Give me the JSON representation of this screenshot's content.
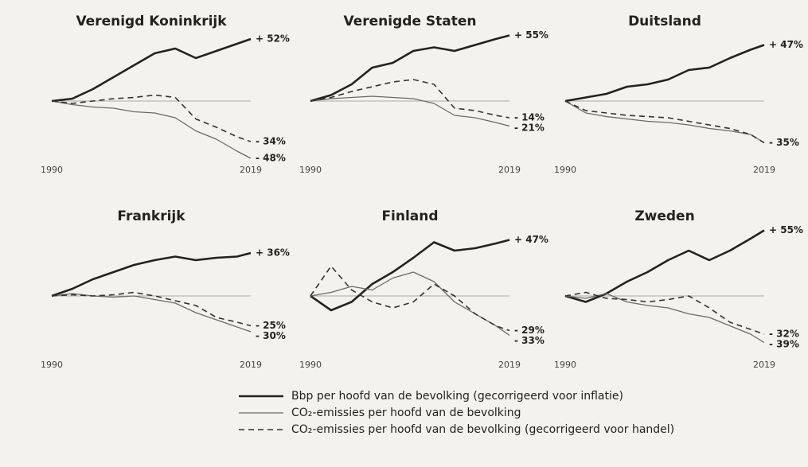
{
  "chart_data": [
    {
      "type": "line",
      "title": "Verenigd Koninkrijk",
      "x": [
        1990,
        1993,
        1996,
        1999,
        2002,
        2005,
        2008,
        2011,
        2014,
        2017,
        2019
      ],
      "xlim": [
        1990,
        2019
      ],
      "xticks": [
        1990,
        2019
      ],
      "ylim": [
        -60,
        60
      ],
      "series": [
        {
          "color": "#222222",
          "style": "solid",
          "values": [
            0,
            2,
            10,
            20,
            30,
            40,
            44,
            36,
            42,
            48,
            52
          ],
          "value_labels": [
            null,
            null,
            null,
            null,
            null,
            null,
            null,
            null,
            null,
            null,
            "+ 52%"
          ]
        },
        {
          "color": "#6a6a6a",
          "style": "solid",
          "values": [
            0,
            -3,
            -5,
            -6,
            -9,
            -10,
            -14,
            -25,
            -32,
            -42,
            -48
          ],
          "value_labels": [
            null,
            null,
            null,
            null,
            null,
            null,
            null,
            null,
            null,
            null,
            "- 48%"
          ]
        },
        {
          "color": "#333333",
          "style": "dashed",
          "values": [
            0,
            -2,
            0,
            2,
            3,
            5,
            3,
            -15,
            -22,
            -30,
            -34
          ],
          "value_labels": [
            null,
            null,
            null,
            null,
            null,
            null,
            null,
            null,
            null,
            null,
            "- 34%"
          ]
        }
      ]
    },
    {
      "type": "line",
      "title": "Verenigde Staten",
      "x": [
        1990,
        1993,
        1996,
        1999,
        2002,
        2005,
        2008,
        2011,
        2014,
        2017,
        2019
      ],
      "xlim": [
        1990,
        2019
      ],
      "xticks": [
        1990,
        2019
      ],
      "ylim": [
        -60,
        60
      ],
      "series": [
        {
          "color": "#222222",
          "style": "solid",
          "values": [
            0,
            5,
            14,
            28,
            32,
            42,
            45,
            42,
            47,
            52,
            55
          ],
          "value_labels": [
            null,
            null,
            null,
            null,
            null,
            null,
            null,
            null,
            null,
            null,
            "+ 55%"
          ]
        },
        {
          "color": "#6a6a6a",
          "style": "solid",
          "values": [
            0,
            2,
            3,
            4,
            3,
            2,
            -2,
            -12,
            -14,
            -18,
            -21
          ],
          "value_labels": [
            null,
            null,
            null,
            null,
            null,
            null,
            null,
            null,
            null,
            null,
            "- 21%"
          ]
        },
        {
          "color": "#333333",
          "style": "dashed",
          "values": [
            0,
            3,
            8,
            12,
            16,
            18,
            14,
            -6,
            -8,
            -12,
            -14
          ],
          "value_labels": [
            null,
            null,
            null,
            null,
            null,
            null,
            null,
            null,
            null,
            null,
            "- 14%"
          ]
        }
      ]
    },
    {
      "type": "line",
      "title": "Duitsland",
      "x": [
        1990,
        1993,
        1996,
        1999,
        2002,
        2005,
        2008,
        2011,
        2014,
        2017,
        2019
      ],
      "xlim": [
        1990,
        2019
      ],
      "xticks": [
        1990,
        2019
      ],
      "ylim": [
        -60,
        60
      ],
      "series": [
        {
          "color": "#222222",
          "style": "solid",
          "values": [
            0,
            3,
            6,
            12,
            14,
            18,
            26,
            28,
            36,
            43,
            47
          ],
          "value_labels": [
            null,
            null,
            null,
            null,
            null,
            null,
            null,
            null,
            null,
            null,
            "+ 47%"
          ]
        },
        {
          "color": "#6a6a6a",
          "style": "solid",
          "values": [
            0,
            -10,
            -13,
            -15,
            -17,
            -18,
            -20,
            -23,
            -25,
            -28,
            -35
          ],
          "value_labels": [
            null,
            null,
            null,
            null,
            null,
            null,
            null,
            null,
            null,
            null,
            "- 35%"
          ]
        },
        {
          "color": "#333333",
          "style": "dashed",
          "values": [
            0,
            -8,
            -10,
            -12,
            -13,
            -14,
            -17,
            -20,
            -23,
            -28,
            -35
          ]
        }
      ]
    },
    {
      "type": "line",
      "title": "Frankrijk",
      "x": [
        1990,
        1993,
        1996,
        1999,
        2002,
        2005,
        2008,
        2011,
        2014,
        2017,
        2019
      ],
      "xlim": [
        1990,
        2019
      ],
      "xticks": [
        1990,
        2019
      ],
      "ylim": [
        -60,
        60
      ],
      "series": [
        {
          "color": "#222222",
          "style": "solid",
          "values": [
            0,
            6,
            14,
            20,
            26,
            30,
            33,
            30,
            32,
            33,
            36
          ],
          "value_labels": [
            null,
            null,
            null,
            null,
            null,
            null,
            null,
            null,
            null,
            null,
            "+ 36%"
          ]
        },
        {
          "color": "#6a6a6a",
          "style": "solid",
          "values": [
            0,
            2,
            0,
            -1,
            0,
            -3,
            -6,
            -14,
            -20,
            -26,
            -30
          ],
          "value_labels": [
            null,
            null,
            null,
            null,
            null,
            null,
            null,
            null,
            null,
            null,
            "- 30%"
          ]
        },
        {
          "color": "#333333",
          "style": "dashed",
          "values": [
            0,
            1,
            0,
            1,
            3,
            0,
            -4,
            -8,
            -18,
            -22,
            -25
          ],
          "value_labels": [
            null,
            null,
            null,
            null,
            null,
            null,
            null,
            null,
            null,
            null,
            "- 25%"
          ]
        }
      ]
    },
    {
      "type": "line",
      "title": "Finland",
      "x": [
        1990,
        1993,
        1996,
        1999,
        2002,
        2005,
        2008,
        2011,
        2014,
        2017,
        2019
      ],
      "xlim": [
        1990,
        2019
      ],
      "xticks": [
        1990,
        2019
      ],
      "ylim": [
        -60,
        60
      ],
      "series": [
        {
          "color": "#222222",
          "style": "solid",
          "values": [
            0,
            -12,
            -5,
            10,
            20,
            32,
            45,
            38,
            40,
            44,
            47
          ],
          "value_labels": [
            null,
            null,
            null,
            null,
            null,
            null,
            null,
            null,
            null,
            null,
            "+ 47%"
          ]
        },
        {
          "color": "#6a6a6a",
          "style": "solid",
          "values": [
            0,
            3,
            8,
            5,
            15,
            20,
            12,
            -5,
            -15,
            -25,
            -33
          ],
          "value_labels": [
            null,
            null,
            null,
            null,
            null,
            null,
            null,
            null,
            null,
            null,
            "- 33%"
          ]
        },
        {
          "color": "#333333",
          "style": "dashed",
          "values": [
            0,
            25,
            5,
            -5,
            -10,
            -5,
            10,
            0,
            -15,
            -25,
            -29
          ],
          "value_labels": [
            null,
            null,
            null,
            null,
            null,
            null,
            null,
            null,
            null,
            null,
            "- 29%"
          ]
        }
      ]
    },
    {
      "type": "line",
      "title": "Zweden",
      "x": [
        1990,
        1993,
        1996,
        1999,
        2002,
        2005,
        2008,
        2011,
        2014,
        2017,
        2019
      ],
      "xlim": [
        1990,
        2019
      ],
      "xticks": [
        1990,
        2019
      ],
      "ylim": [
        -60,
        60
      ],
      "series": [
        {
          "color": "#222222",
          "style": "solid",
          "values": [
            0,
            -5,
            2,
            12,
            20,
            30,
            38,
            30,
            38,
            48,
            55
          ],
          "value_labels": [
            null,
            null,
            null,
            null,
            null,
            null,
            null,
            null,
            null,
            null,
            "+ 55%"
          ]
        },
        {
          "color": "#6a6a6a",
          "style": "solid",
          "values": [
            0,
            -2,
            2,
            -5,
            -8,
            -10,
            -15,
            -18,
            -25,
            -32,
            -39
          ],
          "value_labels": [
            null,
            null,
            null,
            null,
            null,
            null,
            null,
            null,
            null,
            null,
            "- 39%"
          ]
        },
        {
          "color": "#333333",
          "style": "dashed",
          "values": [
            0,
            3,
            -2,
            -3,
            -5,
            -3,
            0,
            -10,
            -22,
            -28,
            -32
          ],
          "value_labels": [
            null,
            null,
            null,
            null,
            null,
            null,
            null,
            null,
            null,
            null,
            "- 32%"
          ]
        }
      ]
    }
  ],
  "legend": [
    {
      "name": "Bbp per hoofd van de bevolking (gecorrigeerd voor inflatie)",
      "color": "#222222",
      "style": "solid"
    },
    {
      "name": "CO₂-emissies per hoofd van de bevolking",
      "color": "#6a6a6a",
      "style": "solid"
    },
    {
      "name": "CO₂-emissies per hoofd van de bevolking (gecorrigeerd voor handel)",
      "color": "#333333",
      "style": "dashed"
    }
  ]
}
